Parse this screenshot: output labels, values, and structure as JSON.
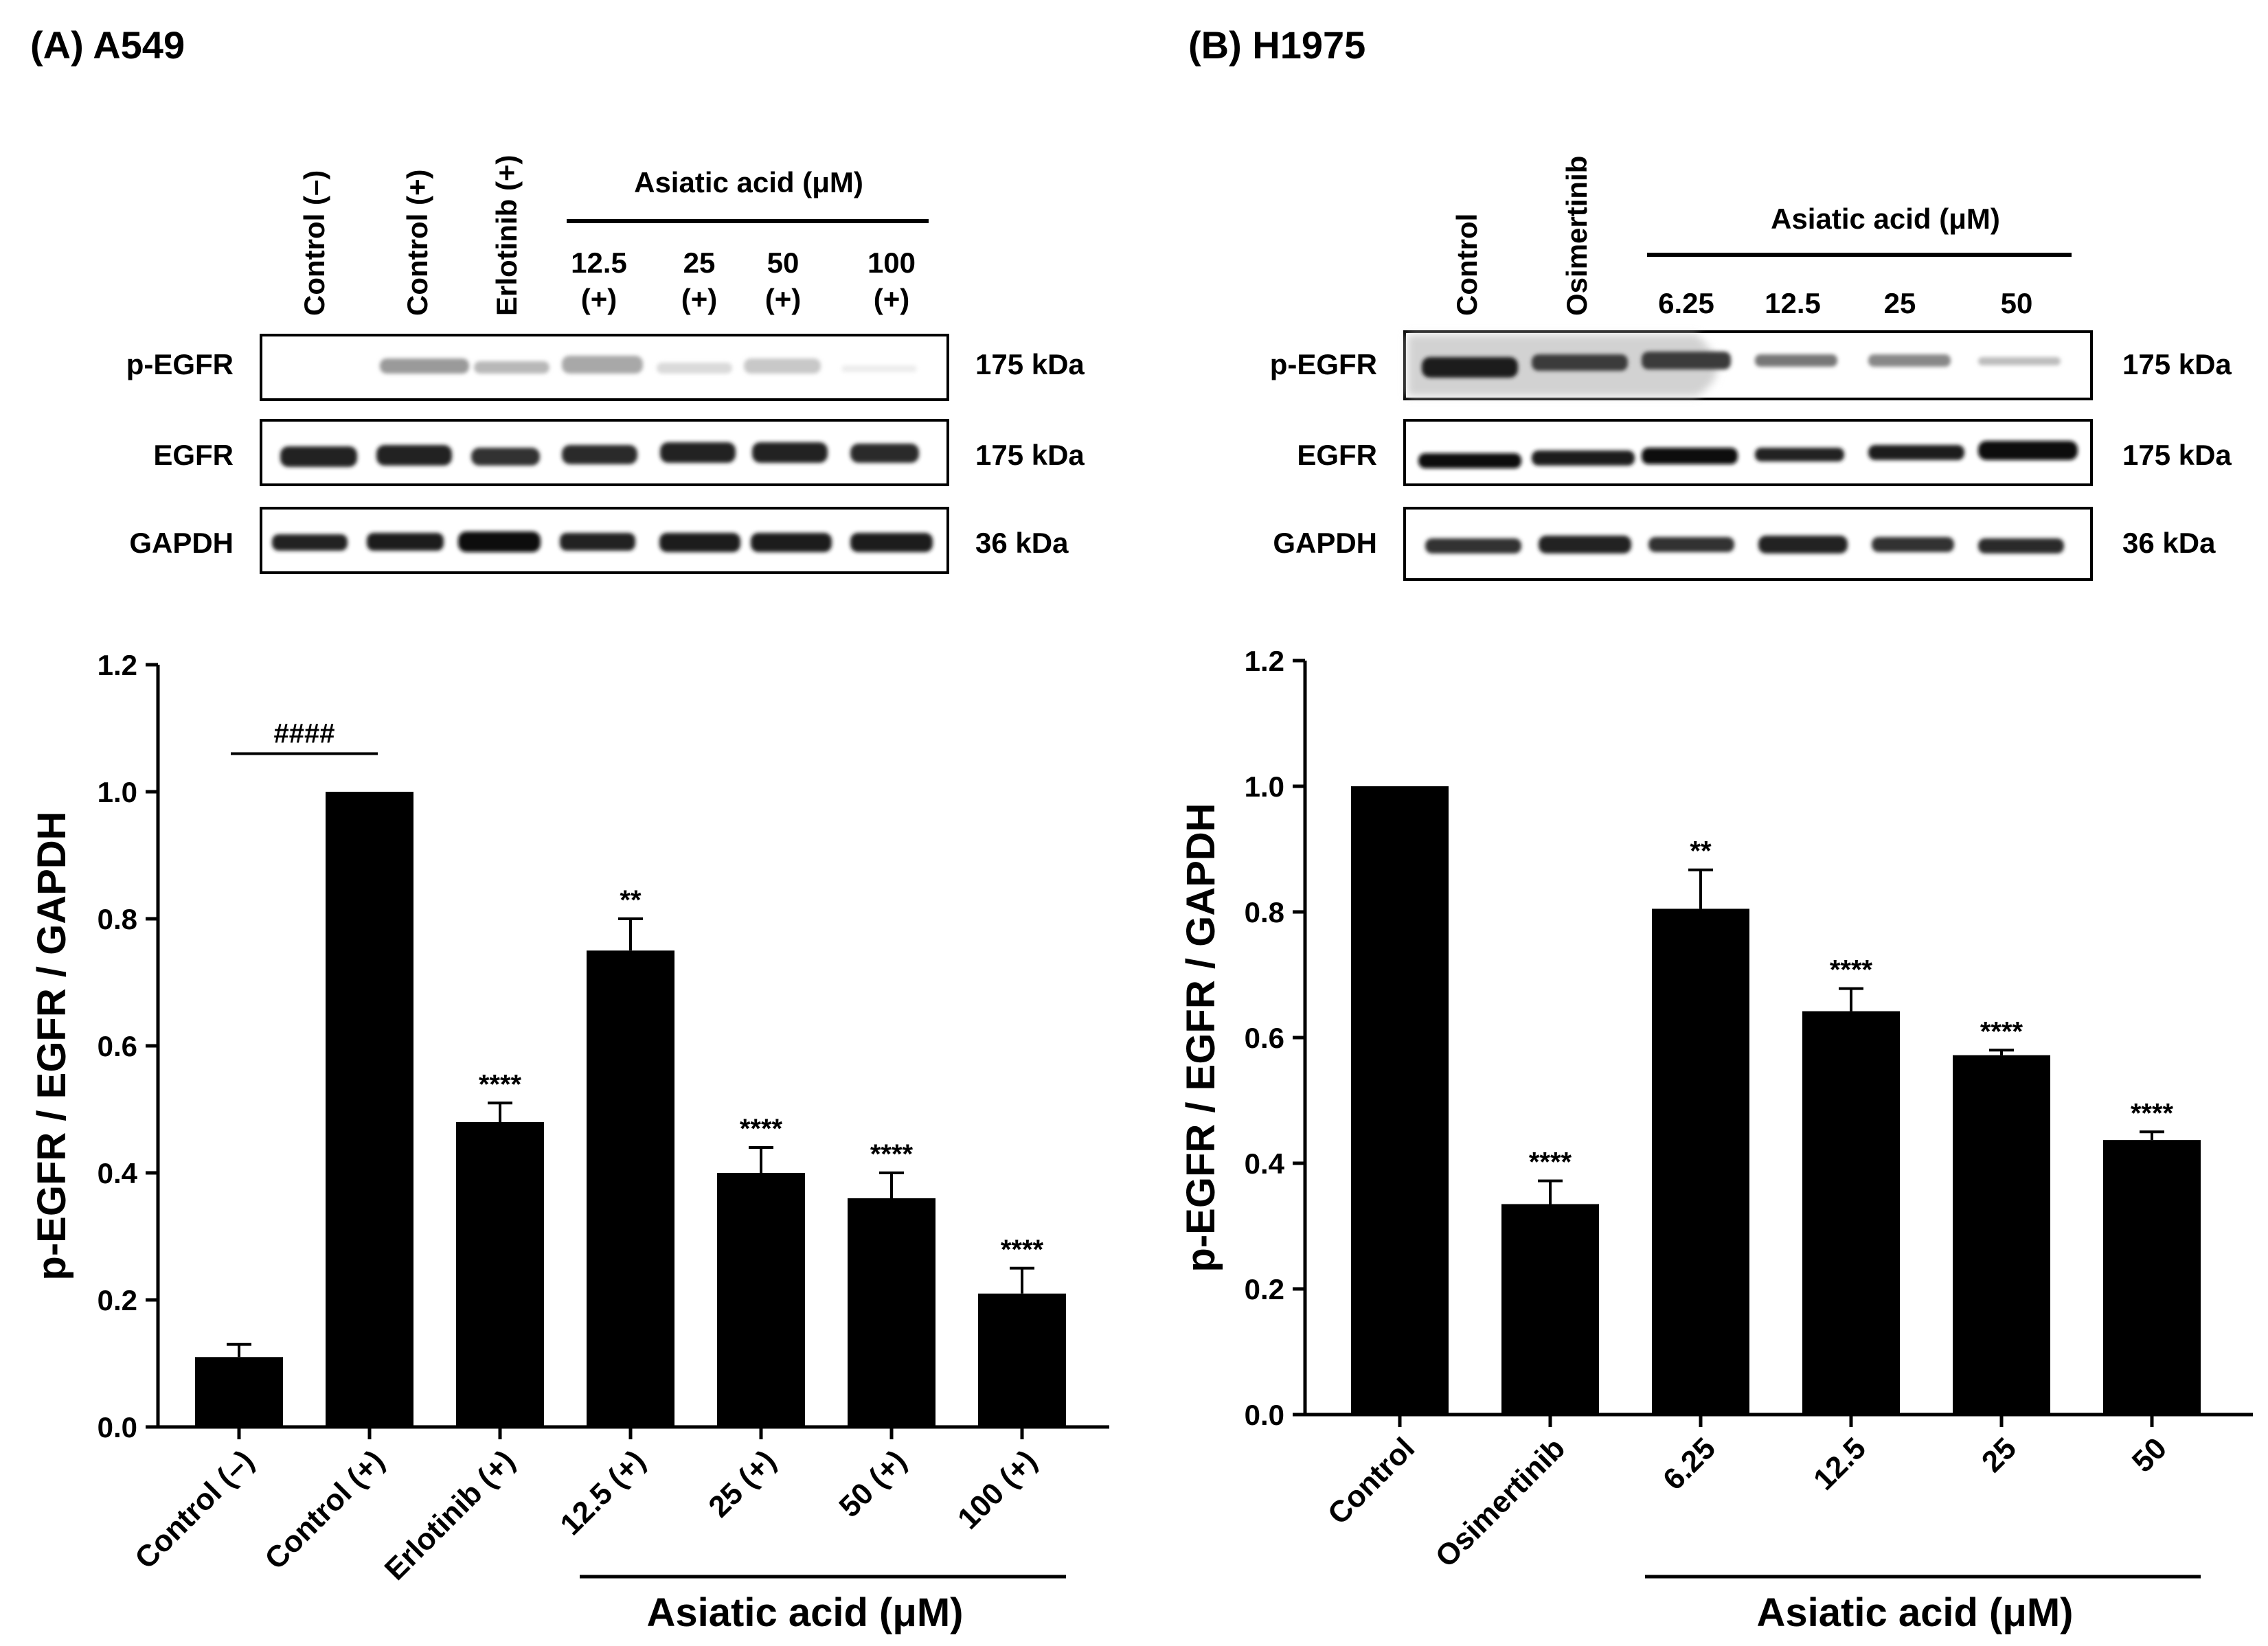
{
  "panels": {
    "a": {
      "title": "(A)  A549"
    },
    "b": {
      "title": "(B)  H1975"
    }
  },
  "blots": {
    "a": {
      "lane_labels_rot": [
        "Control (–)",
        "Control (+)",
        "Erlotinib (+)"
      ],
      "asiatic_header": "Asiatic acid (μM)",
      "dose_values": [
        "12.5",
        "25",
        "50",
        "100"
      ],
      "dose_suffix": "(+)",
      "rows": [
        {
          "name": "p-EGFR",
          "size": "175 kDa"
        },
        {
          "name": "EGFR",
          "size": "175 kDa"
        },
        {
          "name": "GAPDH",
          "size": "36 kDa"
        }
      ]
    },
    "b": {
      "lane_labels_rot": [
        "Control",
        "Osimertinib"
      ],
      "asiatic_header": "Asiatic acid (μM)",
      "dose_values": [
        "6.25",
        "12.5",
        "25",
        "50"
      ],
      "rows": [
        {
          "name": "p-EGFR",
          "size": "175 kDa"
        },
        {
          "name": "EGFR",
          "size": "175 kDa"
        },
        {
          "name": "GAPDH",
          "size": "36 kDa"
        }
      ]
    }
  },
  "chart_data": [
    {
      "type": "bar",
      "panel": "A",
      "title": "A549",
      "ylabel": "p-EGFR / EGFR / GAPDH",
      "xlabel": "Asiatic acid (μM)",
      "ylim": [
        0,
        1.2
      ],
      "yticks": [
        "0.0",
        "0.2",
        "0.4",
        "0.6",
        "0.8",
        "1.0",
        "1.2"
      ],
      "categories": [
        "Control (–)",
        "Control (+)",
        "Erlotinib (+)",
        "12.5 (+)",
        "25 (+)",
        "50 (+)",
        "100 (+)"
      ],
      "values": [
        0.11,
        1.0,
        0.48,
        0.75,
        0.4,
        0.36,
        0.21
      ],
      "errors": [
        0.02,
        0,
        0.03,
        0.05,
        0.04,
        0.04,
        0.04
      ],
      "significance": [
        "",
        "",
        "****",
        "**",
        "****",
        "****",
        "****"
      ],
      "bracket": {
        "label": "####",
        "from": 0,
        "to": 1
      },
      "asiatic_group": [
        3,
        6
      ]
    },
    {
      "type": "bar",
      "panel": "B",
      "title": "H1975",
      "ylabel": "p-EGFR / EGFR / GAPDH",
      "xlabel": "Asiatic acid (μM)",
      "ylim": [
        0,
        1.2
      ],
      "yticks": [
        "0.0",
        "0.2",
        "0.4",
        "0.6",
        "0.8",
        "1.0",
        "1.2"
      ],
      "categories": [
        "Control",
        "Osimertinib",
        "6.25",
        "12.5",
        "25",
        "50"
      ],
      "values": [
        1.0,
        0.335,
        0.805,
        0.642,
        0.572,
        0.437
      ],
      "errors": [
        0,
        0.037,
        0.062,
        0.036,
        0.008,
        0.013
      ],
      "significance": [
        "",
        "****",
        "**",
        "****",
        "****",
        "****"
      ],
      "asiatic_group": [
        2,
        5
      ]
    }
  ]
}
